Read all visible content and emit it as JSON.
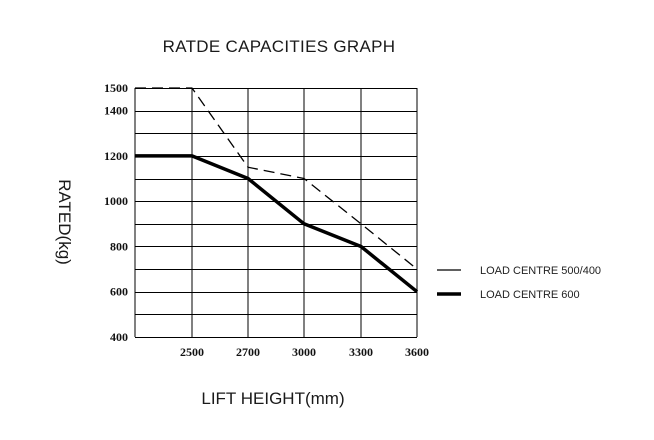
{
  "chart_data": {
    "type": "line",
    "title": "RATDE CAPACITIES GRAPH",
    "xlabel": "LIFT HEIGHT(mm)",
    "ylabel": "RATED(kg)",
    "x_ticks": [
      "2500",
      "2700",
      "3000",
      "3300",
      "3600"
    ],
    "y_ticks": [
      "400",
      "600",
      "800",
      "1000",
      "1200",
      "1400",
      "1500"
    ],
    "x": [
      "",
      "2500",
      "2700",
      "3000",
      "3300",
      "3600"
    ],
    "ylim": [
      400,
      1500
    ],
    "grid": true,
    "legend_position": "right",
    "series": [
      {
        "name": "LOAD CENTRE 500/400",
        "style": "dashed",
        "color": "#000000",
        "values": [
          1500,
          1500,
          1150,
          1100,
          900,
          700
        ]
      },
      {
        "name": "LOAD CENTRE 600",
        "style": "solid-thick",
        "color": "#000000",
        "values": [
          1200,
          1200,
          1100,
          900,
          800,
          600
        ]
      }
    ]
  }
}
